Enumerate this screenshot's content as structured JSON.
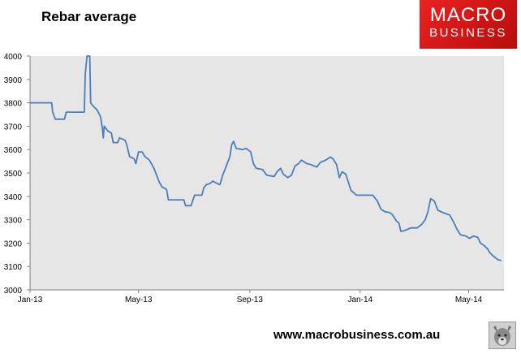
{
  "chart_data": {
    "type": "line",
    "title": "Rebar average",
    "xlabel": "",
    "ylabel": "",
    "ylim": [
      3000,
      4000
    ],
    "y_ticks": [
      3000,
      3100,
      3200,
      3300,
      3400,
      3500,
      3600,
      3700,
      3800,
      3900,
      4000
    ],
    "x_ticks": [
      "Jan-13",
      "May-13",
      "Sep-13",
      "Jan-14",
      "May-14"
    ],
    "grid": false,
    "legend": "none",
    "line_color": "#4a7ebb",
    "series": [
      {
        "points": [
          [
            "2013-01-01",
            3800
          ],
          [
            "2013-01-25",
            3800
          ],
          [
            "2013-01-26",
            3760
          ],
          [
            "2013-01-29",
            3730
          ],
          [
            "2013-02-08",
            3730
          ],
          [
            "2013-02-10",
            3760
          ],
          [
            "2013-03-02",
            3760
          ],
          [
            "2013-03-03",
            3920
          ],
          [
            "2013-03-05",
            4000
          ],
          [
            "2013-03-08",
            4000
          ],
          [
            "2013-03-09",
            3800
          ],
          [
            "2013-03-12",
            3785
          ],
          [
            "2013-03-16",
            3770
          ],
          [
            "2013-03-20",
            3740
          ],
          [
            "2013-03-22",
            3690
          ],
          [
            "2013-03-23",
            3650
          ],
          [
            "2013-03-24",
            3700
          ],
          [
            "2013-03-28",
            3680
          ],
          [
            "2013-04-01",
            3670
          ],
          [
            "2013-04-03",
            3630
          ],
          [
            "2013-04-08",
            3630
          ],
          [
            "2013-04-10",
            3650
          ],
          [
            "2013-04-16",
            3640
          ],
          [
            "2013-04-18",
            3620
          ],
          [
            "2013-04-21",
            3570
          ],
          [
            "2013-04-26",
            3560
          ],
          [
            "2013-04-28",
            3540
          ],
          [
            "2013-05-01",
            3590
          ],
          [
            "2013-05-05",
            3590
          ],
          [
            "2013-05-08",
            3570
          ],
          [
            "2013-05-13",
            3555
          ],
          [
            "2013-05-18",
            3520
          ],
          [
            "2013-05-21",
            3490
          ],
          [
            "2013-05-24",
            3460
          ],
          [
            "2013-05-27",
            3440
          ],
          [
            "2013-06-01",
            3430
          ],
          [
            "2013-06-03",
            3385
          ],
          [
            "2013-06-20",
            3385
          ],
          [
            "2013-06-22",
            3360
          ],
          [
            "2013-06-28",
            3360
          ],
          [
            "2013-07-02",
            3405
          ],
          [
            "2013-07-10",
            3405
          ],
          [
            "2013-07-12",
            3435
          ],
          [
            "2013-07-15",
            3450
          ],
          [
            "2013-07-19",
            3455
          ],
          [
            "2013-07-22",
            3465
          ],
          [
            "2013-07-27",
            3455
          ],
          [
            "2013-07-30",
            3450
          ],
          [
            "2013-08-02",
            3490
          ],
          [
            "2013-08-07",
            3540
          ],
          [
            "2013-08-10",
            3570
          ],
          [
            "2013-08-12",
            3620
          ],
          [
            "2013-08-14",
            3635
          ],
          [
            "2013-08-17",
            3605
          ],
          [
            "2013-08-24",
            3600
          ],
          [
            "2013-08-28",
            3605
          ],
          [
            "2013-09-02",
            3590
          ],
          [
            "2013-09-05",
            3540
          ],
          [
            "2013-09-08",
            3520
          ],
          [
            "2013-09-15",
            3515
          ],
          [
            "2013-09-20",
            3490
          ],
          [
            "2013-09-28",
            3485
          ],
          [
            "2013-10-01",
            3505
          ],
          [
            "2013-10-05",
            3520
          ],
          [
            "2013-10-08",
            3495
          ],
          [
            "2013-10-13",
            3480
          ],
          [
            "2013-10-17",
            3490
          ],
          [
            "2013-10-21",
            3530
          ],
          [
            "2013-10-25",
            3540
          ],
          [
            "2013-10-28",
            3555
          ],
          [
            "2013-11-03",
            3540
          ],
          [
            "2013-11-08",
            3535
          ],
          [
            "2013-11-14",
            3525
          ],
          [
            "2013-11-18",
            3545
          ],
          [
            "2013-11-24",
            3555
          ],
          [
            "2013-11-29",
            3568
          ],
          [
            "2013-12-02",
            3560
          ],
          [
            "2013-12-06",
            3535
          ],
          [
            "2013-12-09",
            3480
          ],
          [
            "2013-12-12",
            3505
          ],
          [
            "2013-12-16",
            3495
          ],
          [
            "2013-12-19",
            3460
          ],
          [
            "2013-12-22",
            3425
          ],
          [
            "2013-12-28",
            3405
          ],
          [
            "2014-01-15",
            3405
          ],
          [
            "2014-01-20",
            3380
          ],
          [
            "2014-01-24",
            3345
          ],
          [
            "2014-01-28",
            3335
          ],
          [
            "2014-02-03",
            3330
          ],
          [
            "2014-02-06",
            3320
          ],
          [
            "2014-02-10",
            3295
          ],
          [
            "2014-02-13",
            3285
          ],
          [
            "2014-02-15",
            3250
          ],
          [
            "2014-02-20",
            3255
          ],
          [
            "2014-02-26",
            3265
          ],
          [
            "2014-03-05",
            3265
          ],
          [
            "2014-03-10",
            3280
          ],
          [
            "2014-03-14",
            3300
          ],
          [
            "2014-03-17",
            3335
          ],
          [
            "2014-03-20",
            3390
          ],
          [
            "2014-03-24",
            3380
          ],
          [
            "2014-03-28",
            3340
          ],
          [
            "2014-04-03",
            3330
          ],
          [
            "2014-04-10",
            3320
          ],
          [
            "2014-04-15",
            3285
          ],
          [
            "2014-04-18",
            3260
          ],
          [
            "2014-04-22",
            3235
          ],
          [
            "2014-04-28",
            3230
          ],
          [
            "2014-05-02",
            3220
          ],
          [
            "2014-05-06",
            3230
          ],
          [
            "2014-05-11",
            3225
          ],
          [
            "2014-05-14",
            3200
          ],
          [
            "2014-05-18",
            3190
          ],
          [
            "2014-05-22",
            3175
          ],
          [
            "2014-05-24",
            3160
          ],
          [
            "2014-05-28",
            3145
          ],
          [
            "2014-06-02",
            3130
          ],
          [
            "2014-06-06",
            3125
          ]
        ]
      }
    ]
  },
  "footer": {
    "url": "www.macrobusiness.com.au"
  },
  "branding": {
    "logo_line1": "MACRO",
    "logo_line2": "BUSINESS",
    "logo_color": "#e31b1b",
    "mascot_icon": "wolf-icon"
  }
}
